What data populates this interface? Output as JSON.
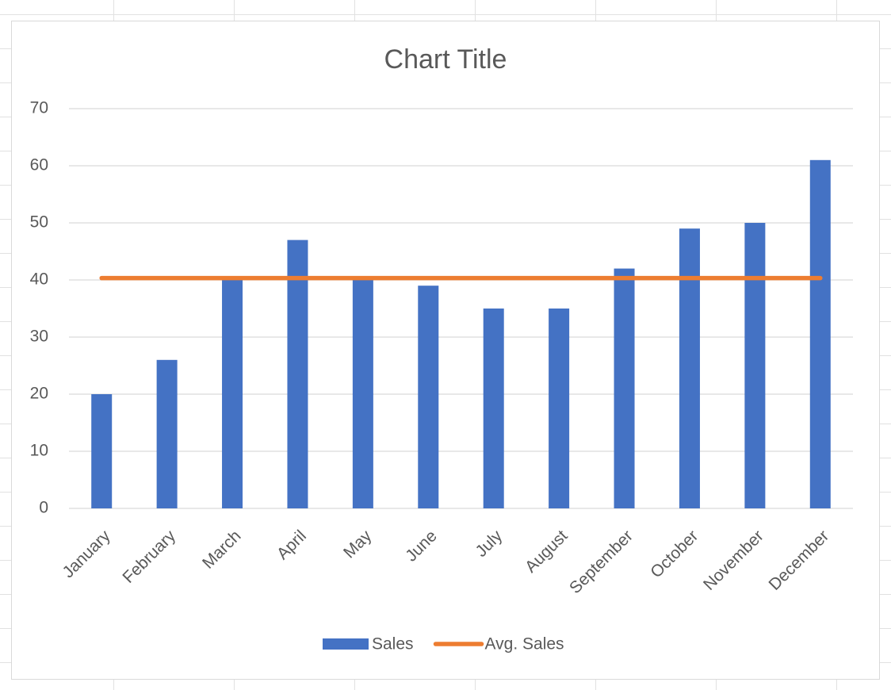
{
  "chart_data": {
    "type": "bar_line",
    "title": "Chart Title",
    "categories": [
      "January",
      "February",
      "March",
      "April",
      "May",
      "June",
      "July",
      "August",
      "September",
      "October",
      "November",
      "December"
    ],
    "series": [
      {
        "name": "Sales",
        "type": "bar",
        "color": "#4472c4",
        "values": [
          20,
          26,
          40,
          47,
          40,
          39,
          35,
          35,
          42,
          49,
          50,
          61
        ]
      },
      {
        "name": "Avg. Sales",
        "type": "line",
        "color": "#ed7d31",
        "values": [
          40.33,
          40.33,
          40.33,
          40.33,
          40.33,
          40.33,
          40.33,
          40.33,
          40.33,
          40.33,
          40.33,
          40.33
        ]
      }
    ],
    "ylim": [
      0,
      70
    ],
    "yticks": [
      0,
      10,
      20,
      30,
      40,
      50,
      60,
      70
    ],
    "grid": true,
    "legend": "bottom"
  }
}
